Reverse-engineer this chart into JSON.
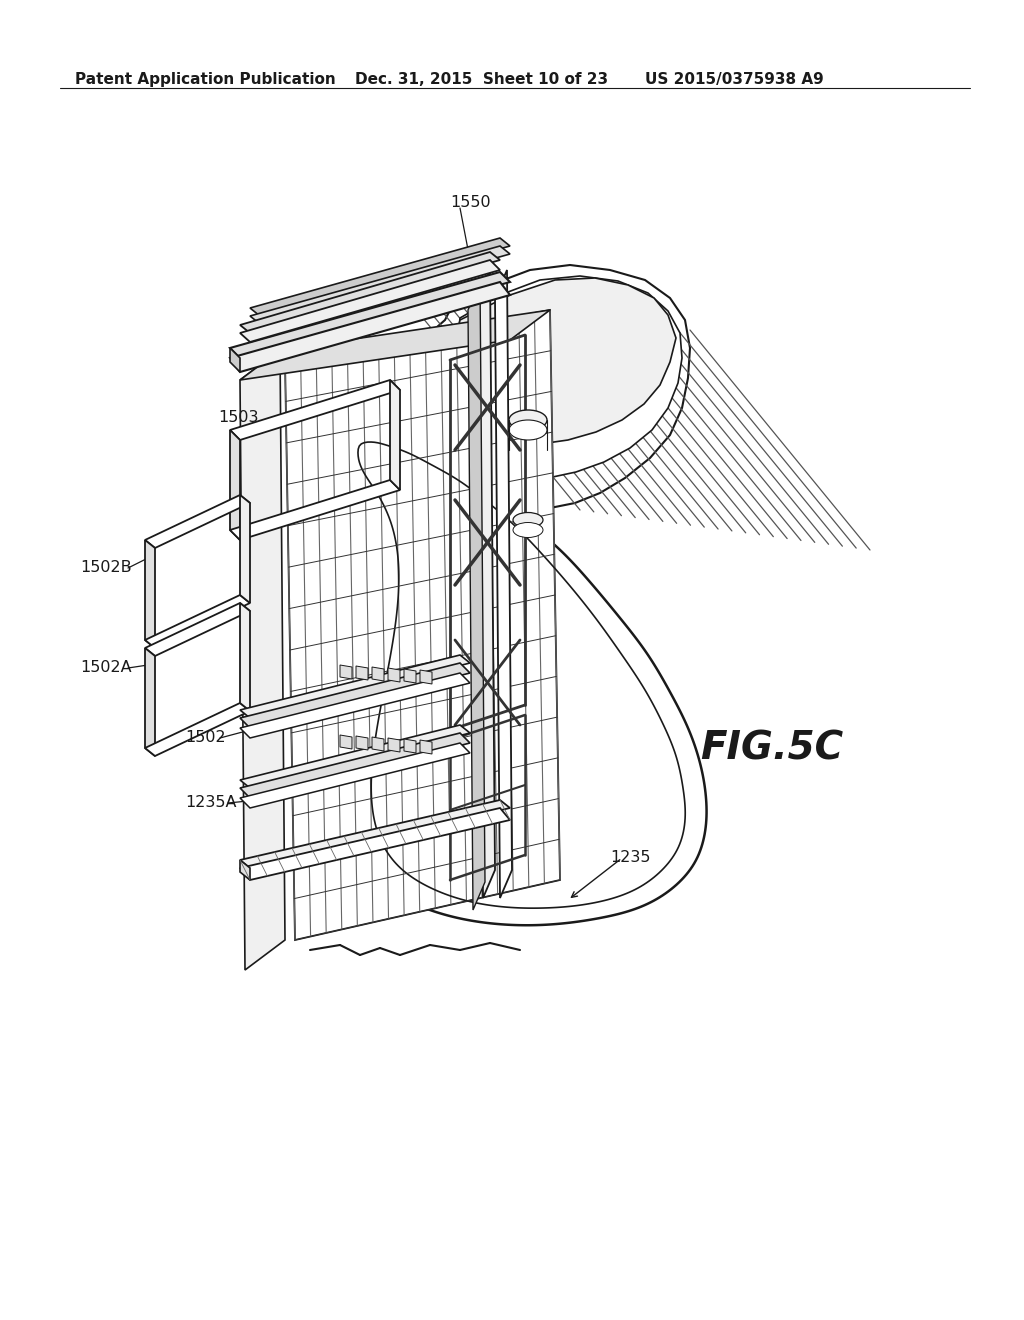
{
  "background_color": "#ffffff",
  "header_left": "Patent Application Publication",
  "header_middle": "Dec. 31, 2015  Sheet 10 of 23",
  "header_right": "US 2015/0375938 A9",
  "fig_label": "FIG.5C",
  "text_color": "#1a1a1a",
  "line_color": "#1a1a1a",
  "fill_white": "#ffffff",
  "fill_light": "#f0f0f0",
  "fill_mid": "#e0e0e0",
  "fill_dark": "#cccccc"
}
